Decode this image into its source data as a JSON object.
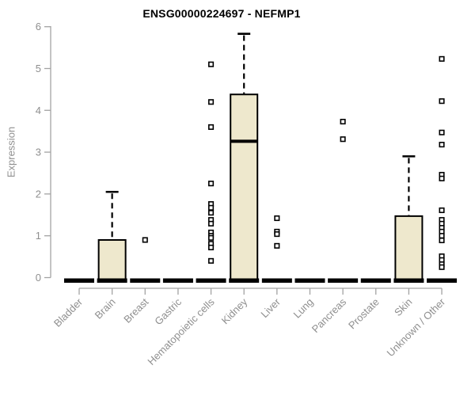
{
  "chart_data": {
    "type": "boxplot",
    "title": "ENSG00000224697 - NEFMP1",
    "ylabel": "Expression",
    "xlabel": "",
    "ylim": [
      0,
      6
    ],
    "yticks": [
      0,
      1,
      2,
      3,
      4,
      5,
      6
    ],
    "grid": false,
    "legend": false,
    "categories": [
      "Bladder",
      "Brain",
      "Breast",
      "Gastric",
      "Hematopoietic cells",
      "Kidney",
      "Liver",
      "Lung",
      "Pancreas",
      "Prostate",
      "Skin",
      "Unknown / Other"
    ],
    "series": [
      {
        "name": "Bladder",
        "q1": 0,
        "median": 0,
        "q3": 0,
        "whisker_low": 0,
        "whisker_high": 0,
        "outliers": []
      },
      {
        "name": "Brain",
        "q1": 0,
        "median": 0,
        "q3": 0.9,
        "whisker_low": 0,
        "whisker_high": 2.05,
        "outliers": []
      },
      {
        "name": "Breast",
        "q1": 0,
        "median": 0,
        "q3": 0,
        "whisker_low": 0,
        "whisker_high": 0,
        "outliers": [
          0.9
        ]
      },
      {
        "name": "Gastric",
        "q1": 0,
        "median": 0,
        "q3": 0,
        "whisker_low": 0,
        "whisker_high": 0,
        "outliers": []
      },
      {
        "name": "Hematopoietic cells",
        "q1": 0,
        "median": 0,
        "q3": 0,
        "whisker_low": 0,
        "whisker_high": 0,
        "outliers": [
          5.1,
          4.2,
          3.6,
          2.25,
          1.76,
          1.67,
          1.55,
          1.38,
          1.29,
          1.08,
          1.0,
          0.95,
          0.81,
          0.72,
          0.4
        ]
      },
      {
        "name": "Kidney",
        "q1": 0,
        "median": 3.26,
        "q3": 4.38,
        "whisker_low": 0,
        "whisker_high": 5.83,
        "outliers": []
      },
      {
        "name": "Liver",
        "q1": 0,
        "median": 0,
        "q3": 0,
        "whisker_low": 0,
        "whisker_high": 0,
        "outliers": [
          1.42,
          1.1,
          1.04,
          0.76
        ]
      },
      {
        "name": "Lung",
        "q1": 0,
        "median": 0,
        "q3": 0,
        "whisker_low": 0,
        "whisker_high": 0,
        "outliers": []
      },
      {
        "name": "Pancreas",
        "q1": 0,
        "median": 0,
        "q3": 0,
        "whisker_low": 0,
        "whisker_high": 0,
        "outliers": [
          3.73,
          3.31
        ]
      },
      {
        "name": "Prostate",
        "q1": 0,
        "median": 0,
        "q3": 0,
        "whisker_low": 0,
        "whisker_high": 0,
        "outliers": []
      },
      {
        "name": "Skin",
        "q1": 0,
        "median": 0,
        "q3": 1.47,
        "whisker_low": 0,
        "whisker_high": 2.9,
        "outliers": []
      },
      {
        "name": "Unknown / Other",
        "q1": 0,
        "median": 0,
        "q3": 0,
        "whisker_low": 0,
        "whisker_high": 0,
        "outliers": [
          5.23,
          4.22,
          3.47,
          3.18,
          2.46,
          2.37,
          1.61,
          1.38,
          1.29,
          1.19,
          1.1,
          1.0,
          0.89,
          0.51,
          0.42,
          0.32,
          0.25
        ]
      }
    ],
    "colors": {
      "box_fill": "#EEE8CD",
      "box_border": "#000000",
      "axis": "#a3a3a3",
      "tick_text": "#8f8f8f",
      "title_text": "#000000",
      "background": "#ffffff"
    }
  }
}
